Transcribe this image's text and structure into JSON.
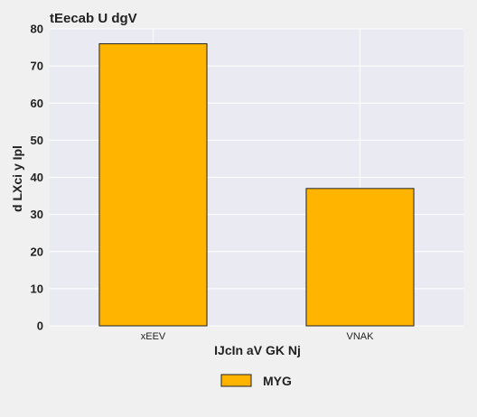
{
  "chart_data": {
    "type": "bar",
    "title": "tEecab U dgV",
    "xlabel": "IJcIn aV GK Nj",
    "ylabel": "d  LXci y Ipl",
    "categories": [
      "xEEV",
      "VNAK"
    ],
    "series": [
      {
        "name": "MYG",
        "values": [
          76,
          37
        ],
        "color": "#ffb400"
      }
    ],
    "ylim": [
      0,
      80
    ],
    "yticks": [
      "0",
      "10",
      "20",
      "30",
      "40",
      "50",
      "60",
      "70",
      "80"
    ],
    "grid": true,
    "legend_position": "bottom-center",
    "colors": {
      "plot_background": "#eaeaf2",
      "page_background": "#f0f0f0",
      "grid": "#ffffff",
      "bar_edge": "#222222"
    }
  }
}
